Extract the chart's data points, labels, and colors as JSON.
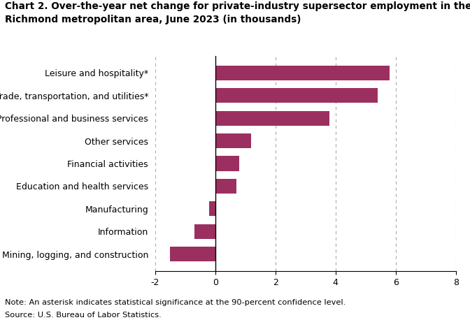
{
  "title_line1": "Chart 2. Over-the-year net change for private-industry supersector employment in the",
  "title_line2": "Richmond metropolitan area, June 2023 (in thousands)",
  "categories": [
    "Mining, logging, and construction",
    "Information",
    "Manufacturing",
    "Education and health services",
    "Financial activities",
    "Other services",
    "Professional and business services",
    "Trade, transportation, and utilities*",
    "Leisure and hospitality*"
  ],
  "values": [
    -1.5,
    -0.7,
    -0.2,
    0.7,
    0.8,
    1.2,
    3.8,
    5.4,
    5.8
  ],
  "bar_color": "#9B3060",
  "xlim": [
    -2,
    8
  ],
  "xticks": [
    -2,
    0,
    2,
    4,
    6,
    8
  ],
  "note_line1": "Note: An asterisk indicates statistical significance at the 90-percent confidence level.",
  "note_line2": "Source: U.S. Bureau of Labor Statistics.",
  "grid_color": "#aaaaaa",
  "title_fontsize": 9.8,
  "label_fontsize": 9.0,
  "tick_fontsize": 9.0,
  "note_fontsize": 8.2
}
